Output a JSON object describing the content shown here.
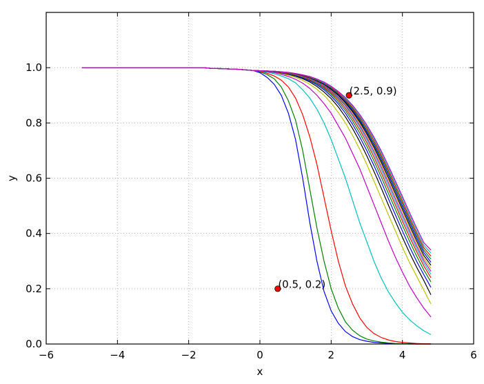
{
  "chart_data": {
    "type": "line",
    "xlabel": "x",
    "ylabel": "y",
    "xlim": [
      -6,
      6
    ],
    "ylim": [
      0,
      1.2
    ],
    "xticks": [
      -6,
      -4,
      -2,
      0,
      2,
      4,
      6
    ],
    "xtick_labels": [
      "−6",
      "−4",
      "−2",
      "0",
      "2",
      "4",
      "6"
    ],
    "yticks": [
      0.0,
      0.2,
      0.4,
      0.6,
      0.8,
      1.0
    ],
    "ytick_labels": [
      "0.0",
      "0.2",
      "0.4",
      "0.6",
      "0.8",
      "1.0"
    ],
    "grid": true,
    "x": [
      -5.0,
      -4.8,
      -4.6,
      -4.4,
      -4.2,
      -4.0,
      -3.8,
      -3.6,
      -3.4,
      -3.2,
      -3.0,
      -2.8,
      -2.6,
      -2.4,
      -2.2,
      -2.0,
      -1.8,
      -1.6,
      -1.4,
      -1.2,
      -1.0,
      -0.8,
      -0.6,
      -0.4,
      -0.2,
      0.0,
      0.2,
      0.4,
      0.6,
      0.8,
      1.0,
      1.2,
      1.4,
      1.6,
      1.8,
      2.0,
      2.2,
      2.4,
      2.6,
      2.8,
      3.0,
      3.2,
      3.4,
      3.6,
      3.8,
      4.0,
      4.2,
      4.4,
      4.6,
      4.8
    ],
    "series": [
      {
        "color": "#0000ff",
        "values": [
          1.0,
          1.0,
          1.0,
          1.0,
          1.0,
          1.0,
          1.0,
          1.0,
          1.0,
          1.0,
          1.0,
          1.0,
          1.0,
          1.0,
          1.0,
          1.0,
          1.0,
          1.0,
          0.998,
          0.997,
          0.996,
          0.995,
          0.994,
          0.992,
          0.99,
          0.982,
          0.965,
          0.94,
          0.9,
          0.835,
          0.74,
          0.6,
          0.44,
          0.3,
          0.19,
          0.12,
          0.075,
          0.045,
          0.027,
          0.016,
          0.01,
          0.006,
          0.004,
          0.002,
          0.001,
          0.001,
          0.0,
          0.0,
          0.0,
          0.0
        ]
      },
      {
        "color": "#008000",
        "values": [
          1.0,
          1.0,
          1.0,
          1.0,
          1.0,
          1.0,
          1.0,
          1.0,
          1.0,
          1.0,
          1.0,
          1.0,
          1.0,
          1.0,
          1.0,
          1.0,
          1.0,
          1.0,
          0.998,
          0.997,
          0.996,
          0.995,
          0.994,
          0.992,
          0.99,
          0.985,
          0.975,
          0.96,
          0.93,
          0.88,
          0.81,
          0.7,
          0.56,
          0.42,
          0.3,
          0.2,
          0.13,
          0.08,
          0.05,
          0.03,
          0.018,
          0.011,
          0.007,
          0.004,
          0.002,
          0.001,
          0.001,
          0.0,
          0.0,
          0.0
        ]
      },
      {
        "color": "#ff0000",
        "values": [
          1.0,
          1.0,
          1.0,
          1.0,
          1.0,
          1.0,
          1.0,
          1.0,
          1.0,
          1.0,
          1.0,
          1.0,
          1.0,
          1.0,
          1.0,
          1.0,
          1.0,
          1.0,
          0.998,
          0.997,
          0.996,
          0.995,
          0.994,
          0.992,
          0.99,
          0.987,
          0.98,
          0.97,
          0.955,
          0.93,
          0.89,
          0.83,
          0.75,
          0.65,
          0.53,
          0.41,
          0.3,
          0.21,
          0.145,
          0.095,
          0.06,
          0.038,
          0.024,
          0.015,
          0.009,
          0.006,
          0.004,
          0.002,
          0.001,
          0.001
        ]
      },
      {
        "color": "#00bfbf",
        "values": [
          1.0,
          1.0,
          1.0,
          1.0,
          1.0,
          1.0,
          1.0,
          1.0,
          1.0,
          1.0,
          1.0,
          1.0,
          1.0,
          1.0,
          1.0,
          1.0,
          1.0,
          1.0,
          0.998,
          0.997,
          0.996,
          0.995,
          0.994,
          0.992,
          0.99,
          0.988,
          0.984,
          0.978,
          0.97,
          0.96,
          0.945,
          0.92,
          0.89,
          0.85,
          0.8,
          0.74,
          0.67,
          0.6,
          0.52,
          0.44,
          0.37,
          0.3,
          0.24,
          0.19,
          0.15,
          0.115,
          0.088,
          0.066,
          0.048,
          0.034
        ]
      },
      {
        "color": "#bf00bf",
        "values": [
          1.0,
          1.0,
          1.0,
          1.0,
          1.0,
          1.0,
          1.0,
          1.0,
          1.0,
          1.0,
          1.0,
          1.0,
          1.0,
          1.0,
          1.0,
          1.0,
          1.0,
          1.0,
          0.998,
          0.997,
          0.996,
          0.995,
          0.994,
          0.992,
          0.99,
          0.989,
          0.986,
          0.982,
          0.976,
          0.968,
          0.958,
          0.944,
          0.925,
          0.9,
          0.87,
          0.835,
          0.79,
          0.745,
          0.69,
          0.635,
          0.57,
          0.505,
          0.44,
          0.375,
          0.315,
          0.26,
          0.21,
          0.168,
          0.13,
          0.098
        ]
      },
      {
        "color": "#bfbf00",
        "values": [
          1.0,
          1.0,
          1.0,
          1.0,
          1.0,
          1.0,
          1.0,
          1.0,
          1.0,
          1.0,
          1.0,
          1.0,
          1.0,
          1.0,
          1.0,
          1.0,
          1.0,
          1.0,
          0.998,
          0.997,
          0.996,
          0.995,
          0.994,
          0.992,
          0.99,
          0.989,
          0.987,
          0.984,
          0.979,
          0.973,
          0.965,
          0.954,
          0.94,
          0.922,
          0.9,
          0.872,
          0.838,
          0.8,
          0.755,
          0.705,
          0.65,
          0.59,
          0.53,
          0.47,
          0.41,
          0.35,
          0.295,
          0.245,
          0.195,
          0.145
        ]
      },
      {
        "color": "#000000",
        "values": [
          1.0,
          1.0,
          1.0,
          1.0,
          1.0,
          1.0,
          1.0,
          1.0,
          1.0,
          1.0,
          1.0,
          1.0,
          1.0,
          1.0,
          1.0,
          1.0,
          1.0,
          1.0,
          0.998,
          0.997,
          0.996,
          0.995,
          0.994,
          0.992,
          0.99,
          0.989,
          0.987,
          0.985,
          0.981,
          0.976,
          0.969,
          0.96,
          0.948,
          0.932,
          0.912,
          0.888,
          0.858,
          0.822,
          0.78,
          0.733,
          0.681,
          0.625,
          0.566,
          0.505,
          0.445,
          0.386,
          0.33,
          0.278,
          0.23,
          0.178
        ]
      },
      {
        "color": "#0000ff",
        "values": [
          1.0,
          1.0,
          1.0,
          1.0,
          1.0,
          1.0,
          1.0,
          1.0,
          1.0,
          1.0,
          1.0,
          1.0,
          1.0,
          1.0,
          1.0,
          1.0,
          1.0,
          1.0,
          0.998,
          0.997,
          0.996,
          0.995,
          0.994,
          0.992,
          0.99,
          0.989,
          0.987,
          0.985,
          0.982,
          0.977,
          0.971,
          0.963,
          0.952,
          0.938,
          0.92,
          0.897,
          0.869,
          0.835,
          0.795,
          0.75,
          0.7,
          0.646,
          0.588,
          0.528,
          0.468,
          0.409,
          0.352,
          0.299,
          0.251,
          0.205
        ]
      },
      {
        "color": "#008000",
        "values": [
          1.0,
          1.0,
          1.0,
          1.0,
          1.0,
          1.0,
          1.0,
          1.0,
          1.0,
          1.0,
          1.0,
          1.0,
          1.0,
          1.0,
          1.0,
          1.0,
          1.0,
          1.0,
          0.998,
          0.997,
          0.996,
          0.995,
          0.994,
          0.992,
          0.99,
          0.989,
          0.988,
          0.986,
          0.983,
          0.978,
          0.973,
          0.965,
          0.955,
          0.942,
          0.925,
          0.904,
          0.877,
          0.845,
          0.807,
          0.764,
          0.716,
          0.663,
          0.606,
          0.547,
          0.488,
          0.429,
          0.372,
          0.318,
          0.268,
          0.225
        ]
      },
      {
        "color": "#ff0000",
        "values": [
          1.0,
          1.0,
          1.0,
          1.0,
          1.0,
          1.0,
          1.0,
          1.0,
          1.0,
          1.0,
          1.0,
          1.0,
          1.0,
          1.0,
          1.0,
          1.0,
          1.0,
          1.0,
          0.998,
          0.997,
          0.996,
          0.995,
          0.994,
          0.992,
          0.99,
          0.989,
          0.988,
          0.986,
          0.983,
          0.979,
          0.974,
          0.967,
          0.957,
          0.945,
          0.929,
          0.909,
          0.884,
          0.853,
          0.817,
          0.776,
          0.729,
          0.677,
          0.621,
          0.563,
          0.504,
          0.445,
          0.388,
          0.334,
          0.283,
          0.24
        ]
      },
      {
        "color": "#00bfbf",
        "values": [
          1.0,
          1.0,
          1.0,
          1.0,
          1.0,
          1.0,
          1.0,
          1.0,
          1.0,
          1.0,
          1.0,
          1.0,
          1.0,
          1.0,
          1.0,
          1.0,
          1.0,
          1.0,
          0.998,
          0.997,
          0.996,
          0.995,
          0.994,
          0.992,
          0.99,
          0.989,
          0.988,
          0.986,
          0.984,
          0.98,
          0.975,
          0.968,
          0.959,
          0.947,
          0.932,
          0.913,
          0.889,
          0.86,
          0.825,
          0.785,
          0.739,
          0.688,
          0.633,
          0.575,
          0.516,
          0.457,
          0.4,
          0.345,
          0.294,
          0.252
        ]
      },
      {
        "color": "#bf00bf",
        "values": [
          1.0,
          1.0,
          1.0,
          1.0,
          1.0,
          1.0,
          1.0,
          1.0,
          1.0,
          1.0,
          1.0,
          1.0,
          1.0,
          1.0,
          1.0,
          1.0,
          1.0,
          1.0,
          0.998,
          0.997,
          0.996,
          0.995,
          0.994,
          0.992,
          0.99,
          0.989,
          0.988,
          0.986,
          0.984,
          0.98,
          0.976,
          0.969,
          0.96,
          0.949,
          0.934,
          0.916,
          0.893,
          0.865,
          0.831,
          0.792,
          0.747,
          0.697,
          0.643,
          0.586,
          0.527,
          0.468,
          0.41,
          0.355,
          0.303,
          0.263
        ]
      },
      {
        "color": "#bfbf00",
        "values": [
          1.0,
          1.0,
          1.0,
          1.0,
          1.0,
          1.0,
          1.0,
          1.0,
          1.0,
          1.0,
          1.0,
          1.0,
          1.0,
          1.0,
          1.0,
          1.0,
          1.0,
          1.0,
          0.998,
          0.997,
          0.996,
          0.995,
          0.994,
          0.992,
          0.99,
          0.989,
          0.988,
          0.987,
          0.984,
          0.981,
          0.976,
          0.97,
          0.962,
          0.951,
          0.937,
          0.919,
          0.897,
          0.87,
          0.837,
          0.799,
          0.755,
          0.706,
          0.652,
          0.596,
          0.538,
          0.479,
          0.421,
          0.365,
          0.312,
          0.274
        ]
      },
      {
        "color": "#000000",
        "values": [
          1.0,
          1.0,
          1.0,
          1.0,
          1.0,
          1.0,
          1.0,
          1.0,
          1.0,
          1.0,
          1.0,
          1.0,
          1.0,
          1.0,
          1.0,
          1.0,
          1.0,
          1.0,
          0.998,
          0.997,
          0.996,
          0.995,
          0.994,
          0.992,
          0.99,
          0.989,
          0.988,
          0.987,
          0.985,
          0.981,
          0.977,
          0.971,
          0.963,
          0.952,
          0.939,
          0.921,
          0.9,
          0.873,
          0.841,
          0.804,
          0.761,
          0.713,
          0.66,
          0.604,
          0.546,
          0.488,
          0.43,
          0.374,
          0.321,
          0.285
        ]
      },
      {
        "color": "#0000ff",
        "values": [
          1.0,
          1.0,
          1.0,
          1.0,
          1.0,
          1.0,
          1.0,
          1.0,
          1.0,
          1.0,
          1.0,
          1.0,
          1.0,
          1.0,
          1.0,
          1.0,
          1.0,
          1.0,
          0.998,
          0.997,
          0.996,
          0.995,
          0.994,
          0.992,
          0.99,
          0.989,
          0.988,
          0.987,
          0.985,
          0.982,
          0.977,
          0.972,
          0.964,
          0.954,
          0.941,
          0.924,
          0.903,
          0.877,
          0.846,
          0.81,
          0.768,
          0.721,
          0.669,
          0.614,
          0.556,
          0.498,
          0.44,
          0.384,
          0.331,
          0.296
        ]
      },
      {
        "color": "#008000",
        "values": [
          1.0,
          1.0,
          1.0,
          1.0,
          1.0,
          1.0,
          1.0,
          1.0,
          1.0,
          1.0,
          1.0,
          1.0,
          1.0,
          1.0,
          1.0,
          1.0,
          1.0,
          1.0,
          0.998,
          0.997,
          0.996,
          0.995,
          0.994,
          0.992,
          0.99,
          0.989,
          0.988,
          0.987,
          0.985,
          0.982,
          0.978,
          0.973,
          0.965,
          0.955,
          0.943,
          0.926,
          0.906,
          0.881,
          0.851,
          0.815,
          0.774,
          0.728,
          0.677,
          0.622,
          0.565,
          0.507,
          0.449,
          0.393,
          0.34,
          0.307
        ]
      },
      {
        "color": "#ff0000",
        "values": [
          1.0,
          1.0,
          1.0,
          1.0,
          1.0,
          1.0,
          1.0,
          1.0,
          1.0,
          1.0,
          1.0,
          1.0,
          1.0,
          1.0,
          1.0,
          1.0,
          1.0,
          1.0,
          0.998,
          0.997,
          0.996,
          0.995,
          0.994,
          0.992,
          0.99,
          0.989,
          0.988,
          0.987,
          0.985,
          0.982,
          0.978,
          0.973,
          0.966,
          0.957,
          0.944,
          0.929,
          0.909,
          0.885,
          0.855,
          0.821,
          0.781,
          0.736,
          0.685,
          0.631,
          0.574,
          0.516,
          0.458,
          0.402,
          0.349,
          0.318
        ]
      },
      {
        "color": "#00bfbf",
        "values": [
          1.0,
          1.0,
          1.0,
          1.0,
          1.0,
          1.0,
          1.0,
          1.0,
          1.0,
          1.0,
          1.0,
          1.0,
          1.0,
          1.0,
          1.0,
          1.0,
          1.0,
          1.0,
          0.998,
          0.997,
          0.996,
          0.995,
          0.994,
          0.992,
          0.99,
          0.989,
          0.988,
          0.987,
          0.985,
          0.982,
          0.979,
          0.974,
          0.967,
          0.958,
          0.946,
          0.931,
          0.912,
          0.888,
          0.86,
          0.826,
          0.787,
          0.743,
          0.693,
          0.639,
          0.583,
          0.525,
          0.467,
          0.411,
          0.358,
          0.329
        ]
      },
      {
        "color": "#bf00bf",
        "values": [
          1.0,
          1.0,
          1.0,
          1.0,
          1.0,
          1.0,
          1.0,
          1.0,
          1.0,
          1.0,
          1.0,
          1.0,
          1.0,
          1.0,
          1.0,
          1.0,
          1.0,
          1.0,
          0.998,
          0.997,
          0.996,
          0.995,
          0.994,
          0.992,
          0.99,
          0.989,
          0.988,
          0.987,
          0.985,
          0.983,
          0.979,
          0.974,
          0.968,
          0.959,
          0.948,
          0.933,
          0.914,
          0.892,
          0.864,
          0.831,
          0.793,
          0.749,
          0.7,
          0.647,
          0.591,
          0.534,
          0.476,
          0.42,
          0.367,
          0.34
        ]
      }
    ],
    "points": [
      {
        "x": 0.5,
        "y": 0.2,
        "color": "#ff0000",
        "label": "(0.5, 0.2)"
      },
      {
        "x": 2.5,
        "y": 0.9,
        "color": "#ff0000",
        "label": "(2.5, 0.9)"
      }
    ]
  }
}
